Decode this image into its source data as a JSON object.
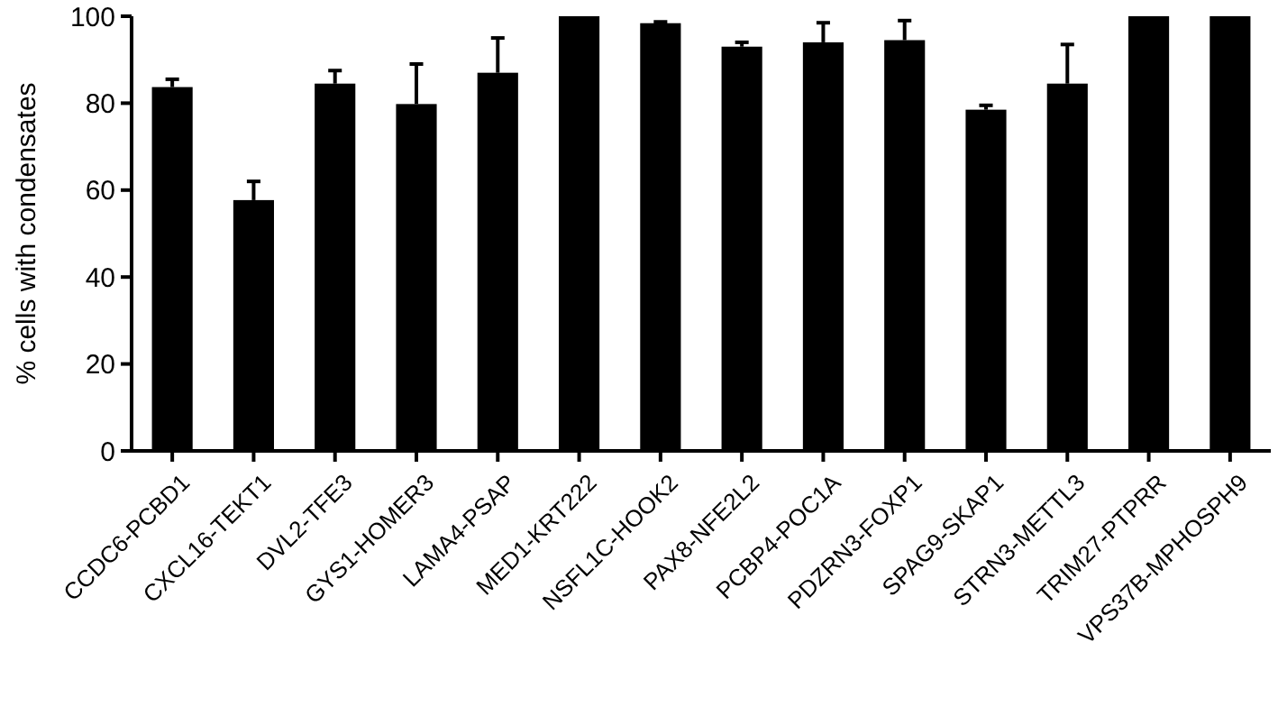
{
  "chart_data": {
    "type": "bar",
    "ylabel": "% cells with condensates",
    "categories": [
      "CCDC6-PCBD1",
      "CXCL16-TEKT1",
      "DVL2-TFE3",
      "GYS1-HOMER3",
      "LAMA4-PSAP",
      "MED1-KRT222",
      "NSFL1C-HOOK2",
      "PAX8-NFE2L2",
      "PCBP4-POC1A",
      "PDZRN3-FOXP1",
      "SPAG9-SKAP1",
      "STRN3-METTL3",
      "TRIM27-PTPRR",
      "VPS37B-MPHOSPH9"
    ],
    "values": [
      83.7,
      57.7,
      84.5,
      79.8,
      87,
      100,
      98.4,
      93,
      94,
      94.5,
      78.5,
      84.5,
      100,
      100
    ],
    "errors": [
      [
        83.7,
        85.5
      ],
      [
        57.7,
        62
      ],
      [
        84.5,
        87.5
      ],
      [
        79.8,
        89
      ],
      [
        87,
        95
      ],
      null,
      [
        98.4,
        98.7
      ],
      [
        93,
        94
      ],
      [
        94,
        98.5
      ],
      [
        94.5,
        99
      ],
      [
        78.5,
        79.5
      ],
      [
        84.5,
        93.5
      ],
      null,
      null
    ],
    "color": "#000000",
    "ylim": [
      0,
      100
    ],
    "yticks": [
      0,
      20,
      40,
      60,
      80,
      100
    ],
    "grid": false
  }
}
